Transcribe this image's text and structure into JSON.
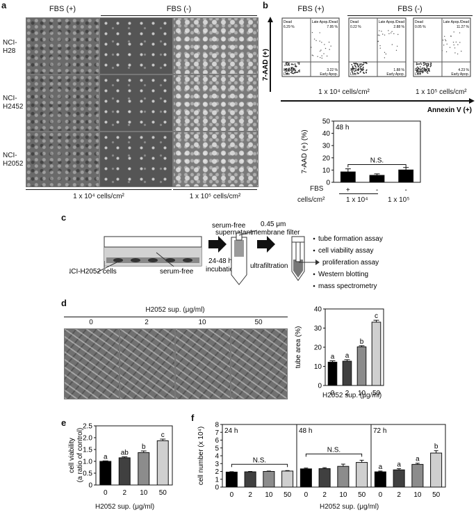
{
  "panels": {
    "a": "a",
    "b": "b",
    "c": "c",
    "d": "d",
    "e": "e",
    "f": "f"
  },
  "panel_a": {
    "col_headers": [
      "FBS (+)",
      "FBS (-)"
    ],
    "row_labels": [
      [
        "NCI-",
        "H28"
      ],
      [
        "NCI-",
        "H2452"
      ],
      [
        "NCI-",
        "H2052"
      ]
    ],
    "density_labels": [
      "1 x 10⁴ cells/cm²",
      "1 x 10⁵ cells/cm²"
    ]
  },
  "panel_b": {
    "col_headers": [
      "FBS (+)",
      "FBS (-)"
    ],
    "y_axis": "7-AAD (+)",
    "x_axis": "Annexin V (+)",
    "density_labels": [
      "1 x 10⁴ cells/cm²",
      "1 x 10⁵ cells/cm²"
    ],
    "quadrant_names": {
      "ul": "Dead",
      "ur": "Late Apop./Dead",
      "ll": "Live",
      "lr": "Early Apop."
    },
    "plots": [
      {
        "ul": "6.29 %",
        "ur": "7.95 %",
        "ll": "83.51 %",
        "lr": "3.22 %"
      },
      {
        "ul": "0.22 %",
        "ur": "2.88 %",
        "ll": "95.84 %",
        "lr": "1.88 %"
      },
      {
        "ul": "0.05 %",
        "ur": "11.27 %",
        "ll": "84.89 %",
        "lr": "4.23 %"
      }
    ],
    "bar_chart": {
      "time": "48 h",
      "ylabel": "7-AAD (+) (%)",
      "yticks": [
        "0",
        "10",
        "20",
        "30",
        "40",
        "50"
      ],
      "ns": "N.S.",
      "fbs_label": "FBS",
      "fbs": [
        "+",
        "-",
        "-"
      ],
      "cells_label": "cells/cm²",
      "cells": [
        "1 x 10⁴",
        "1 x 10⁵"
      ]
    }
  },
  "panel_c": {
    "cells_label": "NCI-H2052 cells",
    "serum_free": "serum-free",
    "supernatant": [
      "serum-free",
      "supernatant"
    ],
    "filter": [
      "0.45 μm",
      "membrane filter"
    ],
    "incubation": [
      "24-48 h",
      "incubation"
    ],
    "ultrafiltration": "ultrafiltration",
    "assays": [
      "tube formation assay",
      "cell viability assay",
      "proliferation assay",
      "Western blotting",
      "mass spectrometry"
    ]
  },
  "panel_d": {
    "header": "H2052 sup. (μg/ml)",
    "conc": [
      "0",
      "2",
      "10",
      "50"
    ],
    "xlabel": "H2052 sup. (μg/ml)"
  },
  "panel_e": {
    "xlabel": "H2052 sup. (μg/ml)"
  },
  "panel_f": {
    "xlabel": "H2052 sup. (μg/ml)",
    "times": [
      "24 h",
      "48 h",
      "72 h"
    ],
    "ns": "N.S."
  },
  "chart_data": [
    {
      "type": "bar",
      "id": "b-annexin",
      "title": "48 h",
      "ylabel": "7-AAD (+) (%)",
      "ylim": [
        0,
        50
      ],
      "categories": [
        "FBS +, 1 x 10⁴",
        "FBS -, 1 x 10⁴",
        "FBS -, 1 x 10⁵"
      ],
      "values": [
        8.5,
        5.7,
        10.1
      ],
      "errors": [
        2.5,
        1.2,
        2.0
      ],
      "colors": [
        "#000000",
        "#000000",
        "#000000"
      ]
    },
    {
      "type": "bar",
      "id": "d-tube",
      "ylabel": "tube area (%)",
      "xlabel": "H2052 sup. (μg/ml)",
      "ylim": [
        0,
        40
      ],
      "yticks": [
        "0",
        "10",
        "20",
        "30",
        "40"
      ],
      "categories": [
        "0",
        "2",
        "10",
        "50"
      ],
      "values": [
        12.2,
        12.7,
        20.2,
        33.1
      ],
      "errors": [
        0.7,
        0.8,
        0.6,
        1.0
      ],
      "letters": [
        "a",
        "a",
        "b",
        "c"
      ],
      "colors": [
        "#000000",
        "#404040",
        "#8c8c8c",
        "#cfcfcf"
      ]
    },
    {
      "type": "bar",
      "id": "e-viability",
      "ylabel": "cell viability (a ratio of control)",
      "xlabel": "H2052 sup. (μg/ml)",
      "ylim": [
        0,
        2.5
      ],
      "yticks": [
        "0",
        "0.5",
        "1.0",
        "1.5",
        "2.0",
        "2.5"
      ],
      "categories": [
        "0",
        "2",
        "10",
        "50"
      ],
      "values": [
        1.0,
        1.15,
        1.37,
        1.87
      ],
      "errors": [
        0.02,
        0.04,
        0.07,
        0.07
      ],
      "letters": [
        "a",
        "ab",
        "b",
        "c"
      ],
      "colors": [
        "#000000",
        "#404040",
        "#8c8c8c",
        "#cfcfcf"
      ]
    },
    {
      "type": "bar",
      "id": "f-cellnumber",
      "ylabel": "cell number (x 10⁴)",
      "xlabel": "H2052 sup. (μg/ml)",
      "ylim": [
        0,
        8
      ],
      "yticks": [
        "0",
        "1",
        "2",
        "3",
        "4",
        "5",
        "6",
        "7",
        "8"
      ],
      "categories": [
        "0",
        "2",
        "10",
        "50"
      ],
      "series": [
        {
          "name": "24 h",
          "values": [
            1.92,
            1.95,
            2.0,
            2.05
          ],
          "errors": [
            0.05,
            0.05,
            0.05,
            0.06
          ],
          "ns": true
        },
        {
          "name": "48 h",
          "values": [
            2.33,
            2.36,
            2.65,
            3.15
          ],
          "errors": [
            0.1,
            0.12,
            0.28,
            0.28
          ],
          "ns": true
        },
        {
          "name": "72 h",
          "values": [
            1.95,
            2.2,
            2.9,
            4.35
          ],
          "errors": [
            0.1,
            0.15,
            0.15,
            0.3
          ],
          "letters": [
            "a",
            "a",
            "a",
            "b"
          ]
        }
      ],
      "colors": [
        "#000000",
        "#404040",
        "#8c8c8c",
        "#cfcfcf"
      ]
    }
  ]
}
